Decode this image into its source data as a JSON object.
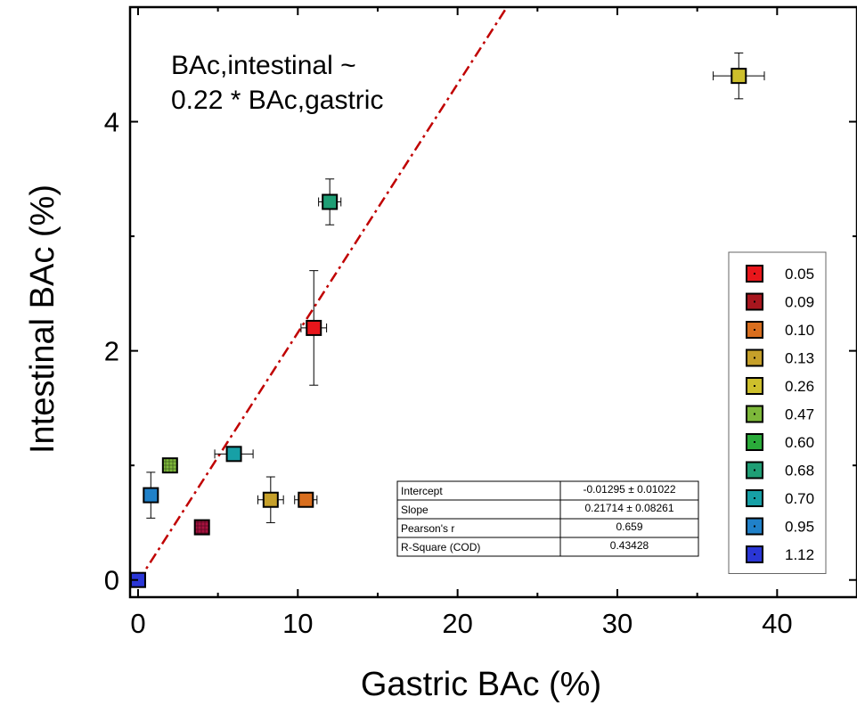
{
  "chart_data": {
    "type": "scatter",
    "title": "",
    "xlabel": "Gastric BAc (%)",
    "ylabel": "Intestinal BAc (%)",
    "xlim": [
      -0.5,
      45
    ],
    "ylim": [
      -0.15,
      5.0
    ],
    "xticks": [
      0,
      10,
      20,
      30,
      40
    ],
    "yticks": [
      0,
      2,
      4
    ],
    "annotation": [
      "BAc,intestinal  ~",
      "0.22 * BAc,gastric"
    ],
    "fit": {
      "slope": 0.21714,
      "intercept": -0.01295
    },
    "points": [
      {
        "x": 11.0,
        "y": 2.2,
        "xerr": 0.8,
        "yerr": 0.5,
        "color": "#e8161b",
        "hatch": false
      },
      {
        "x": 4.0,
        "y": 0.46,
        "xerr": 0,
        "yerr": 0,
        "color": "#a8123f",
        "hatch": true
      },
      {
        "x": 10.5,
        "y": 0.7,
        "xerr": 0.7,
        "yerr": 0,
        "color": "#d86e1e",
        "hatch": false
      },
      {
        "x": 8.3,
        "y": 0.7,
        "xerr": 0.8,
        "yerr": 0.2,
        "color": "#c6a02a",
        "hatch": false
      },
      {
        "x": 37.6,
        "y": 4.4,
        "xerr": 1.6,
        "yerr": 0.2,
        "color": "#cdbf2c",
        "hatch": false
      },
      {
        "x": 2.0,
        "y": 1.0,
        "xerr": 0,
        "yerr": 0,
        "color": "#7db83a",
        "hatch": true
      },
      {
        "x": 12.0,
        "y": 3.3,
        "xerr": 0.7,
        "yerr": 0.2,
        "color": "#1f9e75",
        "hatch": false
      },
      {
        "x": 6.0,
        "y": 1.1,
        "xerr": 1.2,
        "yerr": 0,
        "color": "#17a0a6",
        "hatch": false
      },
      {
        "x": 0.8,
        "y": 0.74,
        "xerr": 0,
        "yerr": 0.2,
        "color": "#2081c9",
        "hatch": false
      },
      {
        "x": 0.0,
        "y": 0.0,
        "xerr": 0,
        "yerr": 0,
        "color": "#2a36d6",
        "hatch": false
      }
    ],
    "legend": {
      "placement": "right",
      "entries": [
        {
          "label": "0.05",
          "color": "#e8161b"
        },
        {
          "label": "0.09",
          "color": "#a8161e"
        },
        {
          "label": "0.10",
          "color": "#d86e1e"
        },
        {
          "label": "0.13",
          "color": "#c6a02a"
        },
        {
          "label": "0.26",
          "color": "#cdbf2c"
        },
        {
          "label": "0.47",
          "color": "#7db83a"
        },
        {
          "label": "0.60",
          "color": "#2aab3a"
        },
        {
          "label": "0.68",
          "color": "#1f9e75"
        },
        {
          "label": "0.70",
          "color": "#17a0a6"
        },
        {
          "label": "0.95",
          "color": "#2081c9"
        },
        {
          "label": "1.12",
          "color": "#2a36d6"
        }
      ]
    },
    "stats_table": [
      [
        "Intercept",
        "-0.01295 ± 0.01022"
      ],
      [
        "Slope",
        "0.21714 ± 0.08261"
      ],
      [
        "Pearson's r",
        "0.659"
      ],
      [
        "R-Square (COD)",
        "0.43428"
      ]
    ],
    "fit_color": "#c00000"
  }
}
